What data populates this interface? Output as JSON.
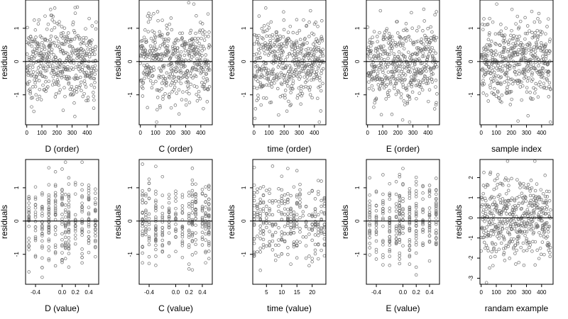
{
  "chart_data": [
    {
      "id": "D-order",
      "type": "scatter",
      "xlabel": "D (order)",
      "ylabel": "residuals",
      "xlim": [
        -8,
        476
      ],
      "ylim": [
        -1.9,
        1.85
      ],
      "xticks": [
        0,
        100,
        200,
        300,
        400
      ],
      "xtick_labels": [
        "0",
        "100",
        "200",
        "300",
        "400"
      ],
      "yticks": [
        -1,
        0,
        1
      ],
      "ytick_labels": [
        "-1",
        "0",
        "1"
      ],
      "zero_line": true,
      "x_kind": "order",
      "n": 460
    },
    {
      "id": "C-order",
      "type": "scatter",
      "xlabel": "C (order)",
      "ylabel": "residuals",
      "xlim": [
        -8,
        476
      ],
      "ylim": [
        -1.9,
        1.85
      ],
      "xticks": [
        0,
        100,
        200,
        300,
        400
      ],
      "xtick_labels": [
        "0",
        "100",
        "200",
        "300",
        "400"
      ],
      "yticks": [
        -1,
        0,
        1
      ],
      "ytick_labels": [
        "-1",
        "0",
        "1"
      ],
      "zero_line": true,
      "x_kind": "order",
      "n": 460
    },
    {
      "id": "time-order",
      "type": "scatter",
      "xlabel": "time (order)",
      "ylabel": "residuals",
      "xlim": [
        -8,
        476
      ],
      "ylim": [
        -1.9,
        1.85
      ],
      "xticks": [
        0,
        100,
        200,
        300,
        400
      ],
      "xtick_labels": [
        "0",
        "100",
        "200",
        "300",
        "400"
      ],
      "yticks": [
        -1,
        0,
        1
      ],
      "ytick_labels": [
        "-1",
        "0",
        "1"
      ],
      "zero_line": true,
      "x_kind": "order",
      "n": 460
    },
    {
      "id": "E-order",
      "type": "scatter",
      "xlabel": "E (order)",
      "ylabel": "residuals",
      "xlim": [
        -8,
        476
      ],
      "ylim": [
        -1.9,
        1.85
      ],
      "xticks": [
        0,
        100,
        200,
        300,
        400
      ],
      "xtick_labels": [
        "0",
        "100",
        "200",
        "300",
        "400"
      ],
      "yticks": [
        -1,
        0,
        1
      ],
      "ytick_labels": [
        "-1",
        "0",
        "1"
      ],
      "zero_line": true,
      "x_kind": "order",
      "n": 460
    },
    {
      "id": "sample-index",
      "type": "scatter",
      "xlabel": "sample index",
      "ylabel": "residuals",
      "xlim": [
        -8,
        476
      ],
      "ylim": [
        -1.9,
        1.85
      ],
      "xticks": [
        0,
        100,
        200,
        300,
        400
      ],
      "xtick_labels": [
        "0",
        "100",
        "200",
        "300",
        "400"
      ],
      "yticks": [
        -1,
        0,
        1
      ],
      "ytick_labels": [
        "-1",
        "0",
        "1"
      ],
      "zero_line": true,
      "x_kind": "order",
      "n": 460
    },
    {
      "id": "D-value",
      "type": "scatter",
      "xlabel": "D (value)",
      "ylabel": "residuals",
      "xlim": [
        -0.55,
        0.55
      ],
      "ylim": [
        -1.9,
        1.85
      ],
      "xticks": [
        -0.4,
        0.0,
        0.2,
        0.4
      ],
      "xtick_labels": [
        "-0.4",
        "0.0",
        "0.2",
        "0.4"
      ],
      "yticks": [
        -1,
        0,
        1
      ],
      "ytick_labels": [
        "-1",
        "0",
        "1"
      ],
      "zero_line": true,
      "x_kind": "value",
      "x_levels": [
        -0.5,
        -0.4,
        -0.3,
        -0.2,
        -0.1,
        0.0,
        0.05,
        0.1,
        0.2,
        0.3,
        0.4,
        0.5
      ],
      "n": 300
    },
    {
      "id": "C-value",
      "type": "scatter",
      "xlabel": "C (value)",
      "ylabel": "residuals",
      "xlim": [
        -0.55,
        0.55
      ],
      "ylim": [
        -1.9,
        1.85
      ],
      "xticks": [
        -0.4,
        0.0,
        0.2,
        0.4
      ],
      "xtick_labels": [
        "-0.4",
        "0.0",
        "0.2",
        "0.4"
      ],
      "yticks": [
        -1,
        0,
        1
      ],
      "ytick_labels": [
        "-1",
        "0",
        "1"
      ],
      "zero_line": true,
      "x_kind": "value",
      "x_levels": [
        -0.5,
        -0.45,
        -0.4,
        -0.3,
        -0.2,
        -0.1,
        0.0,
        0.1,
        0.2,
        0.25,
        0.3,
        0.4,
        0.45,
        0.5
      ],
      "n": 300
    },
    {
      "id": "time-value",
      "type": "scatter",
      "xlabel": "time (value)",
      "ylabel": "residuals",
      "xlim": [
        0.5,
        24.5
      ],
      "ylim": [
        -1.9,
        1.85
      ],
      "xticks": [
        5,
        10,
        15,
        20
      ],
      "xtick_labels": [
        "5",
        "10",
        "15",
        "20"
      ],
      "yticks": [
        -1,
        0,
        1
      ],
      "ytick_labels": [
        "-1",
        "0",
        "1"
      ],
      "zero_line": true,
      "x_kind": "value",
      "x_levels": [
        1,
        2,
        3,
        4,
        5,
        6,
        7,
        8,
        9,
        10,
        11,
        12,
        13,
        14,
        15,
        16,
        17,
        18,
        19,
        20,
        21,
        22,
        23,
        24
      ],
      "n": 300
    },
    {
      "id": "E-value",
      "type": "scatter",
      "xlabel": "E (value)",
      "ylabel": "residuals",
      "xlim": [
        -0.55,
        0.55
      ],
      "ylim": [
        -1.9,
        1.85
      ],
      "xticks": [
        -0.4,
        0.0,
        0.2,
        0.4
      ],
      "xtick_labels": [
        "-0.4",
        "0.0",
        "0.2",
        "0.4"
      ],
      "yticks": [
        -1,
        0,
        1
      ],
      "ytick_labels": [
        "-1",
        "0",
        "1"
      ],
      "zero_line": true,
      "x_kind": "value",
      "x_levels": [
        -0.5,
        -0.4,
        -0.3,
        -0.2,
        -0.1,
        -0.05,
        0.0,
        0.1,
        0.2,
        0.3,
        0.4,
        0.5
      ],
      "n": 300
    },
    {
      "id": "random-example",
      "type": "scatter",
      "xlabel": "randam example",
      "ylabel": "residuals",
      "xlim": [
        -8,
        476
      ],
      "ylim": [
        -3.3,
        2.9
      ],
      "xticks": [
        0,
        100,
        200,
        300,
        400
      ],
      "xtick_labels": [
        "0",
        "100",
        "200",
        "300",
        "400"
      ],
      "yticks": [
        -3,
        -2,
        -1,
        0,
        1,
        2
      ],
      "ytick_labels": [
        "-3",
        "-2",
        "-1",
        "0",
        "1",
        "2"
      ],
      "zero_line": true,
      "x_kind": "order",
      "n": 460
    }
  ]
}
